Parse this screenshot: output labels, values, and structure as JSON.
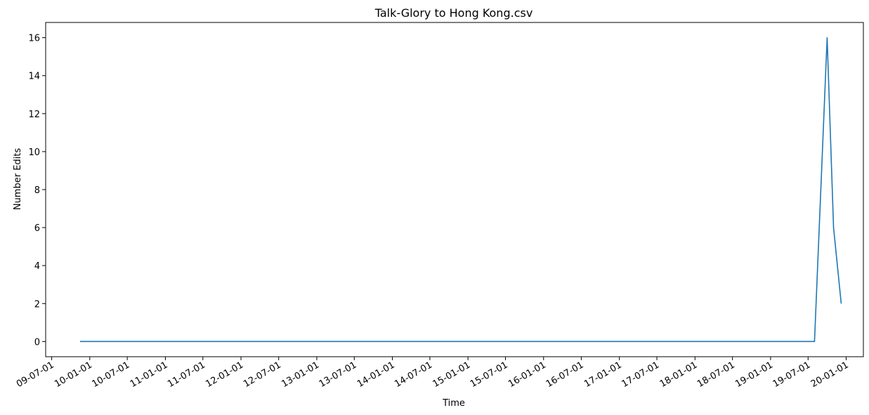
{
  "chart_data": {
    "type": "line",
    "title": "Talk-Glory to Hong Kong.csv",
    "xlabel": "Time",
    "ylabel": "Number Edits",
    "x_axis_type": "date",
    "xlim": [
      "2009-06-02",
      "2020-03-24"
    ],
    "ylim": [
      -0.8,
      16.8
    ],
    "grid": false,
    "legend": "none",
    "line_color": "#1f77b4",
    "x_ticks": [
      {
        "date": "2009-07-01",
        "label": "09-07-01"
      },
      {
        "date": "2010-01-01",
        "label": "10-01-01"
      },
      {
        "date": "2010-07-01",
        "label": "10-07-01"
      },
      {
        "date": "2011-01-01",
        "label": "11-01-01"
      },
      {
        "date": "2011-07-01",
        "label": "11-07-01"
      },
      {
        "date": "2012-01-01",
        "label": "12-01-01"
      },
      {
        "date": "2012-07-01",
        "label": "12-07-01"
      },
      {
        "date": "2013-01-01",
        "label": "13-01-01"
      },
      {
        "date": "2013-07-01",
        "label": "13-07-01"
      },
      {
        "date": "2014-01-01",
        "label": "14-01-01"
      },
      {
        "date": "2014-07-01",
        "label": "14-07-01"
      },
      {
        "date": "2015-01-01",
        "label": "15-01-01"
      },
      {
        "date": "2015-07-01",
        "label": "15-07-01"
      },
      {
        "date": "2016-01-01",
        "label": "16-01-01"
      },
      {
        "date": "2016-07-01",
        "label": "16-07-01"
      },
      {
        "date": "2017-01-01",
        "label": "17-01-01"
      },
      {
        "date": "2017-07-01",
        "label": "17-07-01"
      },
      {
        "date": "2018-01-01",
        "label": "18-01-01"
      },
      {
        "date": "2018-07-01",
        "label": "18-07-01"
      },
      {
        "date": "2019-01-01",
        "label": "19-01-01"
      },
      {
        "date": "2019-07-01",
        "label": "19-07-01"
      },
      {
        "date": "2020-01-01",
        "label": "20-01-01"
      }
    ],
    "y_ticks": [
      0,
      2,
      4,
      6,
      8,
      10,
      12,
      14,
      16
    ],
    "series": [
      {
        "points": [
          {
            "x": "2009-11-15",
            "y": 0
          },
          {
            "x": "2019-08-01",
            "y": 0
          },
          {
            "x": "2019-10-01",
            "y": 16
          },
          {
            "x": "2019-11-01",
            "y": 6
          },
          {
            "x": "2019-12-08",
            "y": 2
          }
        ]
      }
    ]
  }
}
